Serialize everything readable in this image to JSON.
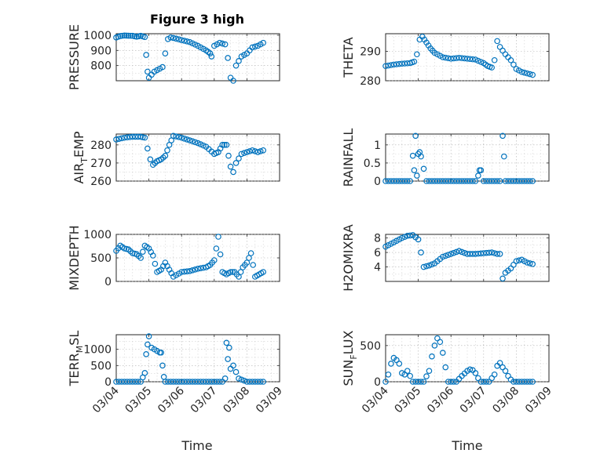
{
  "figure": {
    "title": "Figure 3 high"
  },
  "chart_data": [
    {
      "id": "pressure",
      "type": "scatter",
      "ylabel": "PRESSURE",
      "ylim": [
        700,
        1010
      ],
      "yticks": [
        800,
        900,
        1000
      ],
      "color": "#0072bd",
      "x": [
        "03/04 00:00",
        "03/04 03:00",
        "03/04 06:00",
        "03/04 09:00",
        "03/04 12:00",
        "03/04 15:00",
        "03/04 18:00",
        "03/04 21:00",
        "03/04 22:00",
        "03/04 23:00",
        "03/05 00:00",
        "03/05 02:00",
        "03/05 04:00",
        "03/05 06:00",
        "03/05 08:00",
        "03/05 10:00",
        "03/05 12:00",
        "03/05 14:00",
        "03/05 16:00",
        "03/05 18:00",
        "03/06 00:00",
        "03/06 06:00",
        "03/06 12:00",
        "03/06 18:00",
        "03/06 21:00",
        "03/06 22:00",
        "03/07 00:00",
        "03/07 04:00",
        "03/07 08:00",
        "03/07 10:00",
        "03/07 12:00",
        "03/07 14:00",
        "03/07 16:00",
        "03/07 18:00",
        "03/07 20:00",
        "03/08 00:00",
        "03/08 04:00",
        "03/08 08:00",
        "03/08 12:00"
      ],
      "y": [
        985,
        995,
        998,
        997,
        996,
        990,
        996,
        988,
        870,
        760,
        720,
        740,
        760,
        770,
        780,
        790,
        880,
        975,
        985,
        982,
        968,
        955,
        930,
        900,
        880,
        860,
        930,
        950,
        940,
        850,
        720,
        700,
        800,
        830,
        860,
        880,
        920,
        930,
        950
      ]
    },
    {
      "id": "theta",
      "type": "scatter",
      "ylabel": "THETA",
      "ylim": [
        280,
        296
      ],
      "yticks": [
        280,
        290
      ],
      "color": "#0072bd",
      "x": [
        "03/04 00:00",
        "03/04 06:00",
        "03/04 12:00",
        "03/04 18:00",
        "03/04 21:00",
        "03/04 23:00",
        "03/05 01:00",
        "03/05 03:00",
        "03/05 06:00",
        "03/05 09:00",
        "03/05 12:00",
        "03/05 18:00",
        "03/06 00:00",
        "03/06 06:00",
        "03/06 12:00",
        "03/06 18:00",
        "03/07 00:00",
        "03/07 03:00",
        "03/07 06:00",
        "03/07 08:00",
        "03/07 10:00",
        "03/07 12:00",
        "03/07 16:00",
        "03/07 20:00",
        "03/08 00:00",
        "03/08 04:00",
        "03/08 08:00",
        "03/08 12:00"
      ],
      "y": [
        285,
        285.5,
        285.8,
        286,
        286.5,
        289,
        294,
        295,
        293,
        291,
        289.5,
        288,
        287.5,
        287.8,
        287.5,
        287.2,
        286,
        285,
        284.5,
        287,
        293.5,
        291.5,
        289,
        287,
        284,
        283,
        282.5,
        282
      ]
    },
    {
      "id": "air_temp",
      "type": "scatter",
      "ylabel": "AIR_TEMP",
      "ylim": [
        260,
        286
      ],
      "yticks": [
        260,
        270,
        280
      ],
      "color": "#0072bd",
      "x": [
        "03/04 00:00",
        "03/04 06:00",
        "03/04 12:00",
        "03/04 18:00",
        "03/04 21:00",
        "03/04 23:00",
        "03/05 01:00",
        "03/05 03:00",
        "03/05 06:00",
        "03/05 09:00",
        "03/05 12:00",
        "03/05 15:00",
        "03/05 18:00",
        "03/06 00:00",
        "03/06 06:00",
        "03/06 12:00",
        "03/06 18:00",
        "03/07 00:00",
        "03/07 03:00",
        "03/07 06:00",
        "03/07 09:00",
        "03/07 12:00",
        "03/07 14:00",
        "03/07 16:00",
        "03/07 20:00",
        "03/08 00:00",
        "03/08 04:00",
        "03/08 08:00",
        "03/08 12:00"
      ],
      "y": [
        283,
        284,
        284.5,
        284.5,
        284,
        278,
        272,
        269,
        271,
        272,
        274,
        280,
        285,
        284,
        282.5,
        281,
        279,
        275,
        276,
        280,
        280,
        268,
        265,
        270,
        275,
        276,
        277,
        276,
        277
      ]
    },
    {
      "id": "rainfall",
      "type": "scatter",
      "ylabel": "RAINFALL",
      "ylim": [
        0,
        1.3
      ],
      "yticks": [
        0,
        0.5,
        1
      ],
      "color": "#0072bd",
      "x": [
        "03/04 00:00",
        "03/04 06:00",
        "03/04 12:00",
        "03/04 18:00",
        "03/04 20:00",
        "03/04 21:00",
        "03/04 22:00",
        "03/04 23:00",
        "03/05 00:00",
        "03/05 01:00",
        "03/05 02:00",
        "03/05 06:00",
        "03/05 12:00",
        "03/05 18:00",
        "03/06 00:00",
        "03/06 06:00",
        "03/06 12:00",
        "03/06 18:00",
        "03/06 20:00",
        "03/06 21:00",
        "03/06 22:00",
        "03/07 00:00",
        "03/07 06:00",
        "03/07 12:00",
        "03/07 14:00",
        "03/07 15:00",
        "03/07 16:00",
        "03/07 18:00",
        "03/08 00:00",
        "03/08 06:00",
        "03/08 12:00"
      ],
      "y": [
        0,
        0,
        0,
        0,
        0.7,
        0.3,
        1.25,
        0.15,
        0.75,
        0.8,
        0.68,
        0,
        0,
        0,
        0,
        0,
        0,
        0,
        0.15,
        0.3,
        0.3,
        0,
        0,
        0,
        1.25,
        0.68,
        0,
        0,
        0,
        0,
        0
      ]
    },
    {
      "id": "mixdepth",
      "type": "scatter",
      "ylabel": "MIXDEPTH",
      "ylim": [
        0,
        1000
      ],
      "yticks": [
        0,
        500,
        1000
      ],
      "color": "#0072bd",
      "x": [
        "03/04 00:00",
        "03/04 03:00",
        "03/04 06:00",
        "03/04 09:00",
        "03/04 12:00",
        "03/04 15:00",
        "03/04 18:00",
        "03/04 21:00",
        "03/05 00:00",
        "03/05 03:00",
        "03/05 06:00",
        "03/05 09:00",
        "03/05 12:00",
        "03/05 15:00",
        "03/05 18:00",
        "03/06 00:00",
        "03/06 06:00",
        "03/06 12:00",
        "03/06 18:00",
        "03/06 21:00",
        "03/07 00:00",
        "03/07 03:00",
        "03/07 06:00",
        "03/07 09:00",
        "03/07 12:00",
        "03/07 15:00",
        "03/07 18:00",
        "03/07 21:00",
        "03/08 00:00",
        "03/08 03:00",
        "03/08 06:00",
        "03/08 09:00",
        "03/08 12:00"
      ],
      "y": [
        650,
        760,
        700,
        680,
        600,
        580,
        500,
        760,
        700,
        550,
        200,
        250,
        400,
        250,
        100,
        200,
        220,
        270,
        300,
        350,
        450,
        950,
        200,
        150,
        200,
        200,
        100,
        300,
        400,
        600,
        100,
        150,
        200
      ]
    },
    {
      "id": "h2omixra",
      "type": "scatter",
      "ylabel": "H2OMIXRA",
      "ylim": [
        2,
        8.5
      ],
      "yticks": [
        4,
        6,
        8
      ],
      "color": "#0072bd",
      "x": [
        "03/04 00:00",
        "03/04 04:00",
        "03/04 08:00",
        "03/04 12:00",
        "03/04 16:00",
        "03/04 20:00",
        "03/05 00:00",
        "03/05 02:00",
        "03/05 04:00",
        "03/05 08:00",
        "03/05 12:00",
        "03/05 18:00",
        "03/06 00:00",
        "03/06 06:00",
        "03/06 12:00",
        "03/06 18:00",
        "03/07 00:00",
        "03/07 06:00",
        "03/07 10:00",
        "03/07 12:00",
        "03/07 14:00",
        "03/07 16:00",
        "03/07 20:00",
        "03/08 00:00",
        "03/08 04:00",
        "03/08 08:00",
        "03/08 12:00"
      ],
      "y": [
        6.8,
        7.2,
        7.6,
        8,
        8.3,
        8.4,
        7.8,
        6,
        4,
        4.2,
        4.5,
        5.4,
        5.8,
        6.2,
        5.8,
        5.8,
        5.9,
        6,
        5.8,
        5.8,
        2.4,
        3.2,
        3.8,
        4.8,
        5,
        4.6,
        4.4
      ]
    },
    {
      "id": "terr_msl",
      "type": "scatter",
      "ylabel": "TERR_MSL",
      "ylim": [
        0,
        1450
      ],
      "yticks": [
        0,
        500,
        1000
      ],
      "color": "#0072bd",
      "x": [
        "03/04 00:00",
        "03/04 06:00",
        "03/04 12:00",
        "03/04 18:00",
        "03/04 21:00",
        "03/04 22:00",
        "03/04 23:00",
        "03/05 00:00",
        "03/05 02:00",
        "03/05 04:00",
        "03/05 06:00",
        "03/05 08:00",
        "03/05 09:00",
        "03/05 10:00",
        "03/05 11:00",
        "03/05 12:00",
        "03/05 18:00",
        "03/06 00:00",
        "03/06 06:00",
        "03/06 12:00",
        "03/06 18:00",
        "03/07 00:00",
        "03/07 06:00",
        "03/07 08:00",
        "03/07 09:00",
        "03/07 10:00",
        "03/07 11:00",
        "03/07 12:00",
        "03/07 14:00",
        "03/07 16:00",
        "03/07 18:00",
        "03/08 00:00",
        "03/08 06:00",
        "03/08 12:00"
      ],
      "y": [
        0,
        0,
        0,
        0,
        270,
        850,
        1150,
        1400,
        1050,
        1000,
        950,
        900,
        900,
        500,
        150,
        0,
        0,
        0,
        0,
        0,
        0,
        0,
        0,
        100,
        1200,
        700,
        1050,
        400,
        500,
        300,
        100,
        0,
        0,
        0
      ]
    },
    {
      "id": "sun_flux",
      "type": "scatter",
      "ylabel": "SUN_FLUX",
      "ylim": [
        0,
        650
      ],
      "yticks": [
        0,
        500
      ],
      "color": "#0072bd",
      "x": [
        "03/04 00:00",
        "03/04 02:00",
        "03/04 04:00",
        "03/04 06:00",
        "03/04 08:00",
        "03/04 10:00",
        "03/04 12:00",
        "03/04 14:00",
        "03/04 16:00",
        "03/04 18:00",
        "03/04 20:00",
        "03/04 22:00",
        "03/05 00:00",
        "03/05 04:00",
        "03/05 08:00",
        "03/05 10:00",
        "03/05 12:00",
        "03/05 14:00",
        "03/05 16:00",
        "03/05 18:00",
        "03/05 20:00",
        "03/05 22:00",
        "03/06 00:00",
        "03/06 04:00",
        "03/06 08:00",
        "03/06 12:00",
        "03/06 14:00",
        "03/06 16:00",
        "03/06 18:00",
        "03/06 20:00",
        "03/06 22:00",
        "03/07 00:00",
        "03/07 04:00",
        "03/07 08:00",
        "03/07 10:00",
        "03/07 12:00",
        "03/07 14:00",
        "03/07 16:00",
        "03/07 18:00",
        "03/07 20:00",
        "03/07 22:00",
        "03/08 00:00",
        "03/08 06:00",
        "03/08 12:00"
      ],
      "y": [
        0,
        100,
        250,
        330,
        300,
        250,
        120,
        100,
        150,
        80,
        0,
        0,
        0,
        0,
        150,
        350,
        500,
        600,
        550,
        400,
        200,
        0,
        0,
        0,
        80,
        150,
        170,
        160,
        120,
        50,
        0,
        0,
        0,
        100,
        220,
        260,
        200,
        150,
        80,
        30,
        0,
        0,
        0,
        0
      ]
    }
  ],
  "xaxis": {
    "ticks": [
      "03/04",
      "03/05",
      "03/06",
      "03/07",
      "03/08",
      "03/09"
    ],
    "label": "Time"
  }
}
